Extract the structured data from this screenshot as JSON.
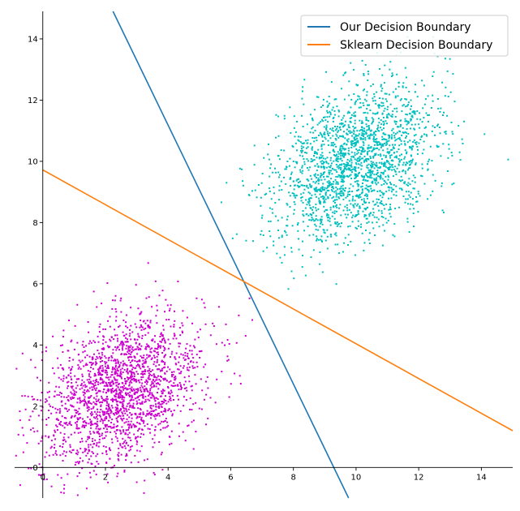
{
  "chart_data": {
    "type": "scatter",
    "xlim": [
      -0.9,
      15.0
    ],
    "ylim": [
      -1.0,
      14.9
    ],
    "xticks": [
      0,
      2,
      4,
      6,
      8,
      10,
      12,
      14
    ],
    "yticks": [
      0,
      2,
      4,
      6,
      8,
      10,
      12,
      14
    ],
    "x_tick_labels": [
      "0",
      "2",
      "4",
      "6",
      "8",
      "10",
      "12",
      "14"
    ],
    "y_tick_labels": [
      "0",
      "2",
      "4",
      "6",
      "8",
      "10",
      "12",
      "14"
    ],
    "grid": false,
    "spines": "centered at origin, top and right hidden",
    "legend_position": "top-right",
    "clusters": [
      {
        "color": "#cc00cc",
        "center": [
          2.5,
          2.5
        ],
        "spread": [
          1.3,
          1.25
        ],
        "count": 2000,
        "correlation": 0.35
      },
      {
        "color": "#00bfbf",
        "center": [
          10.0,
          10.0
        ],
        "spread": [
          1.3,
          1.25
        ],
        "count": 2000,
        "correlation": 0.35
      }
    ],
    "lines": [
      {
        "name": "Our Decision Boundary",
        "color": "#1f77b4",
        "x": [
          2.24,
          9.76
        ],
        "y": [
          14.9,
          -1.0
        ]
      },
      {
        "name": "Sklearn Decision Boundary",
        "color": "#ff7f0e",
        "x": [
          0.0,
          15.0
        ],
        "y": [
          9.72,
          1.2
        ]
      }
    ]
  }
}
